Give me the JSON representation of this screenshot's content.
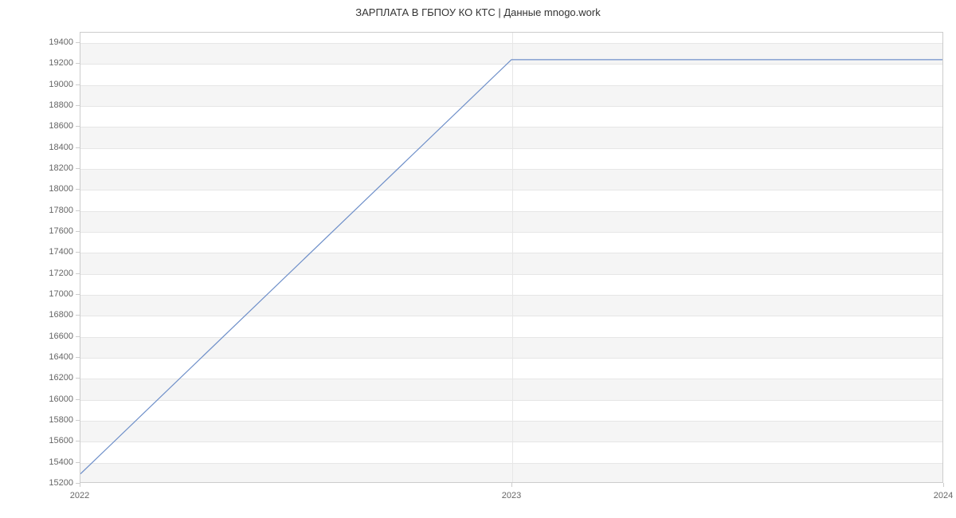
{
  "chart": {
    "type": "line",
    "title": "ЗАРПЛАТА В ГБПОУ КО КТС | Данные mnogo.work",
    "title_fontsize": 13,
    "title_color": "#333333",
    "background_color": "#ffffff",
    "plot_border_color": "#cccccc",
    "grid_color": "#e6e6e6",
    "band_color": "#f5f5f5",
    "label_fontsize": 11,
    "label_color": "#666666",
    "x": {
      "min": 2022,
      "max": 2024,
      "ticks": [
        2022,
        2023,
        2024
      ],
      "tick_labels": [
        "2022",
        "2023",
        "2024"
      ]
    },
    "y": {
      "min": 15200,
      "max": 19500,
      "ticks": [
        15200,
        15400,
        15600,
        15800,
        16000,
        16200,
        16400,
        16600,
        16800,
        17000,
        17200,
        17400,
        17600,
        17800,
        18000,
        18200,
        18400,
        18600,
        18800,
        19000,
        19200,
        19400
      ],
      "tick_labels": [
        "15200",
        "15400",
        "15600",
        "15800",
        "16000",
        "16200",
        "16400",
        "16600",
        "16800",
        "17000",
        "17200",
        "17400",
        "17600",
        "17800",
        "18000",
        "18200",
        "18400",
        "18600",
        "18800",
        "19000",
        "19200",
        "19400"
      ]
    },
    "series": [
      {
        "name": "salary",
        "color": "#6e8fc9",
        "line_width": 1.2,
        "data": [
          {
            "x": 2022,
            "y": 15279
          },
          {
            "x": 2023,
            "y": 19242
          },
          {
            "x": 2024,
            "y": 19242
          }
        ]
      }
    ]
  }
}
